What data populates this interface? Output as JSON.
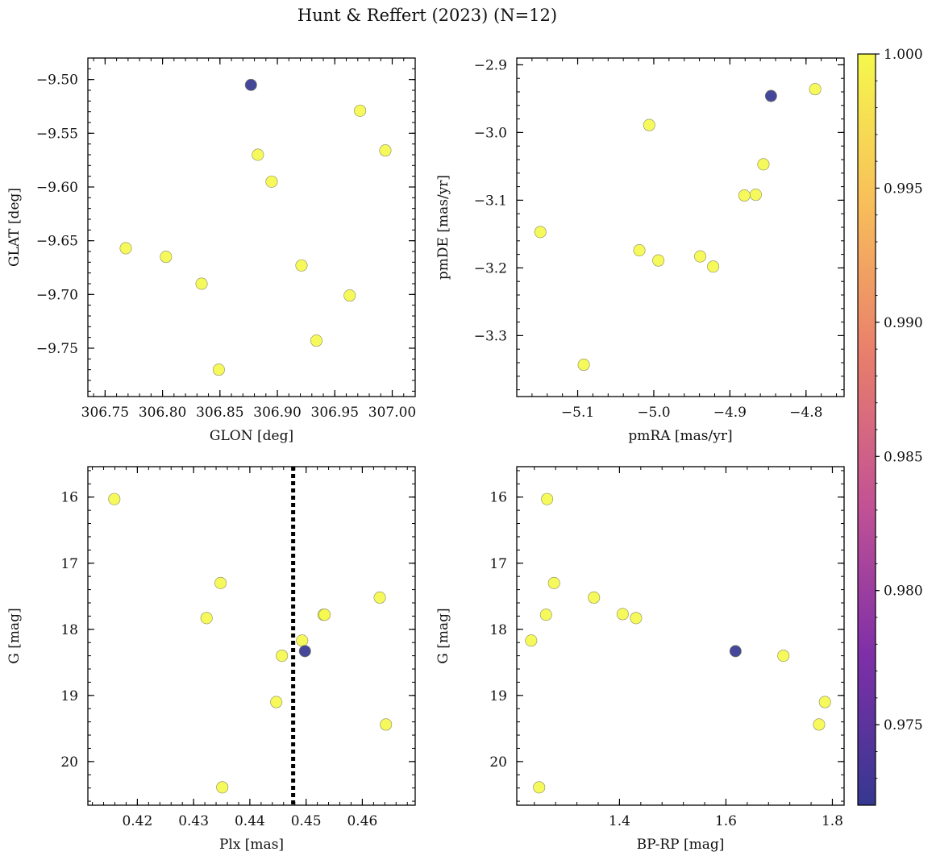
{
  "figure_title": "Hunt & Reffert (2023) (N=12)",
  "colorbar": {
    "min": 0.972,
    "max": 1.0,
    "ticks": [
      0.975,
      0.98,
      0.985,
      0.99,
      0.995,
      1.0
    ],
    "tick_labels": [
      "0.975",
      "0.980",
      "0.985",
      "0.990",
      "0.995",
      "1.000"
    ],
    "colormap_stops": [
      "#353890",
      "#7e2fa8",
      "#c25294",
      "#e87e6c",
      "#f8be5a",
      "#f5f84d"
    ]
  },
  "chart_data": [
    {
      "type": "scatter",
      "title": "",
      "xlabel": "GLON [deg]",
      "ylabel": "GLAT [deg]",
      "xlim": [
        306.735,
        307.02
      ],
      "ylim": [
        -9.795,
        -9.48
      ],
      "x_ticks": [
        306.75,
        306.8,
        306.85,
        306.9,
        306.95,
        307.0
      ],
      "x_tick_labels": [
        "306.75",
        "306.80",
        "306.85",
        "306.90",
        "306.95",
        "307.00"
      ],
      "y_ticks": [
        -9.5,
        -9.55,
        -9.6,
        -9.65,
        -9.7,
        -9.75
      ],
      "y_tick_labels": [
        "−9.50",
        "−9.55",
        "−9.60",
        "−9.65",
        "−9.70",
        "−9.75"
      ],
      "x": [
        306.877,
        306.972,
        306.994,
        306.883,
        306.895,
        306.768,
        306.803,
        306.834,
        306.921,
        306.963,
        306.934,
        306.849
      ],
      "y": [
        -9.505,
        -9.529,
        -9.566,
        -9.57,
        -9.595,
        -9.657,
        -9.665,
        -9.69,
        -9.673,
        -9.701,
        -9.743,
        -9.77
      ],
      "prob": [
        0.972,
        1.0,
        1.0,
        1.0,
        1.0,
        1.0,
        1.0,
        1.0,
        1.0,
        1.0,
        1.0,
        1.0
      ]
    },
    {
      "type": "scatter",
      "title": "",
      "xlabel": "pmRA [mas/yr]",
      "ylabel": "pmDE [mas/yr]",
      "xlim": [
        -5.18,
        -4.75
      ],
      "ylim": [
        -3.39,
        -2.89
      ],
      "x_ticks": [
        -5.1,
        -5.0,
        -4.9,
        -4.8
      ],
      "x_tick_labels": [
        "−5.1",
        "−5.0",
        "−4.9",
        "−4.8"
      ],
      "y_ticks": [
        -2.9,
        -3.0,
        -3.1,
        -3.2,
        -3.3
      ],
      "y_tick_labels": [
        "−2.9",
        "−3.0",
        "−3.1",
        "−3.2",
        "−3.3"
      ],
      "x": [
        -4.846,
        -4.788,
        -5.006,
        -4.856,
        -4.881,
        -4.866,
        -5.149,
        -5.019,
        -4.994,
        -4.939,
        -4.922,
        -5.092
      ],
      "y": [
        -2.946,
        -2.936,
        -2.989,
        -3.047,
        -3.093,
        -3.092,
        -3.147,
        -3.174,
        -3.189,
        -3.183,
        -3.198,
        -3.343
      ],
      "prob": [
        0.972,
        1.0,
        1.0,
        1.0,
        1.0,
        1.0,
        1.0,
        1.0,
        1.0,
        1.0,
        1.0,
        1.0
      ]
    },
    {
      "type": "scatter",
      "title": "",
      "xlabel": "Plx [mas]",
      "ylabel": "G [mag]",
      "xlim": [
        0.4112,
        0.4694
      ],
      "ylim": [
        20.66,
        15.54
      ],
      "x_ticks": [
        0.42,
        0.43,
        0.44,
        0.45,
        0.46
      ],
      "x_tick_labels": [
        "0.42",
        "0.43",
        "0.44",
        "0.45",
        "0.46"
      ],
      "y_ticks": [
        16,
        17,
        18,
        19,
        20
      ],
      "y_tick_labels": [
        "16",
        "17",
        "18",
        "19",
        "20"
      ],
      "x": [
        0.4159,
        0.4348,
        0.4323,
        0.4531,
        0.4533,
        0.4631,
        0.4493,
        0.4457,
        0.4447,
        0.4642,
        0.4351,
        0.4498
      ],
      "y": [
        16.03,
        17.3,
        17.83,
        17.78,
        17.78,
        17.52,
        18.17,
        18.4,
        19.1,
        19.44,
        20.39,
        18.33
      ],
      "prob": [
        1.0,
        1.0,
        1.0,
        1.0,
        1.0,
        1.0,
        1.0,
        1.0,
        1.0,
        1.0,
        1.0,
        0.972
      ],
      "vline": 0.4477,
      "vline_style": "dotted"
    },
    {
      "type": "scatter",
      "title": "",
      "xlabel": "BP-RP [mag]",
      "ylabel": "G [mag]",
      "xlim": [
        1.207,
        1.822
      ],
      "ylim": [
        20.66,
        15.54
      ],
      "x_ticks": [
        1.4,
        1.6,
        1.8
      ],
      "x_tick_labels": [
        "1.4",
        "1.6",
        "1.8"
      ],
      "y_ticks": [
        16,
        17,
        18,
        19,
        20
      ],
      "y_tick_labels": [
        "16",
        "17",
        "18",
        "19",
        "20"
      ],
      "x": [
        1.264,
        1.277,
        1.352,
        1.406,
        1.431,
        1.262,
        1.234,
        1.249,
        1.708,
        1.786,
        1.775,
        1.618
      ],
      "y": [
        16.03,
        17.3,
        17.52,
        17.77,
        17.83,
        17.78,
        18.17,
        20.39,
        18.4,
        19.1,
        19.44,
        18.33
      ],
      "prob": [
        1.0,
        1.0,
        1.0,
        1.0,
        1.0,
        1.0,
        1.0,
        1.0,
        1.0,
        1.0,
        1.0,
        0.972
      ]
    }
  ]
}
